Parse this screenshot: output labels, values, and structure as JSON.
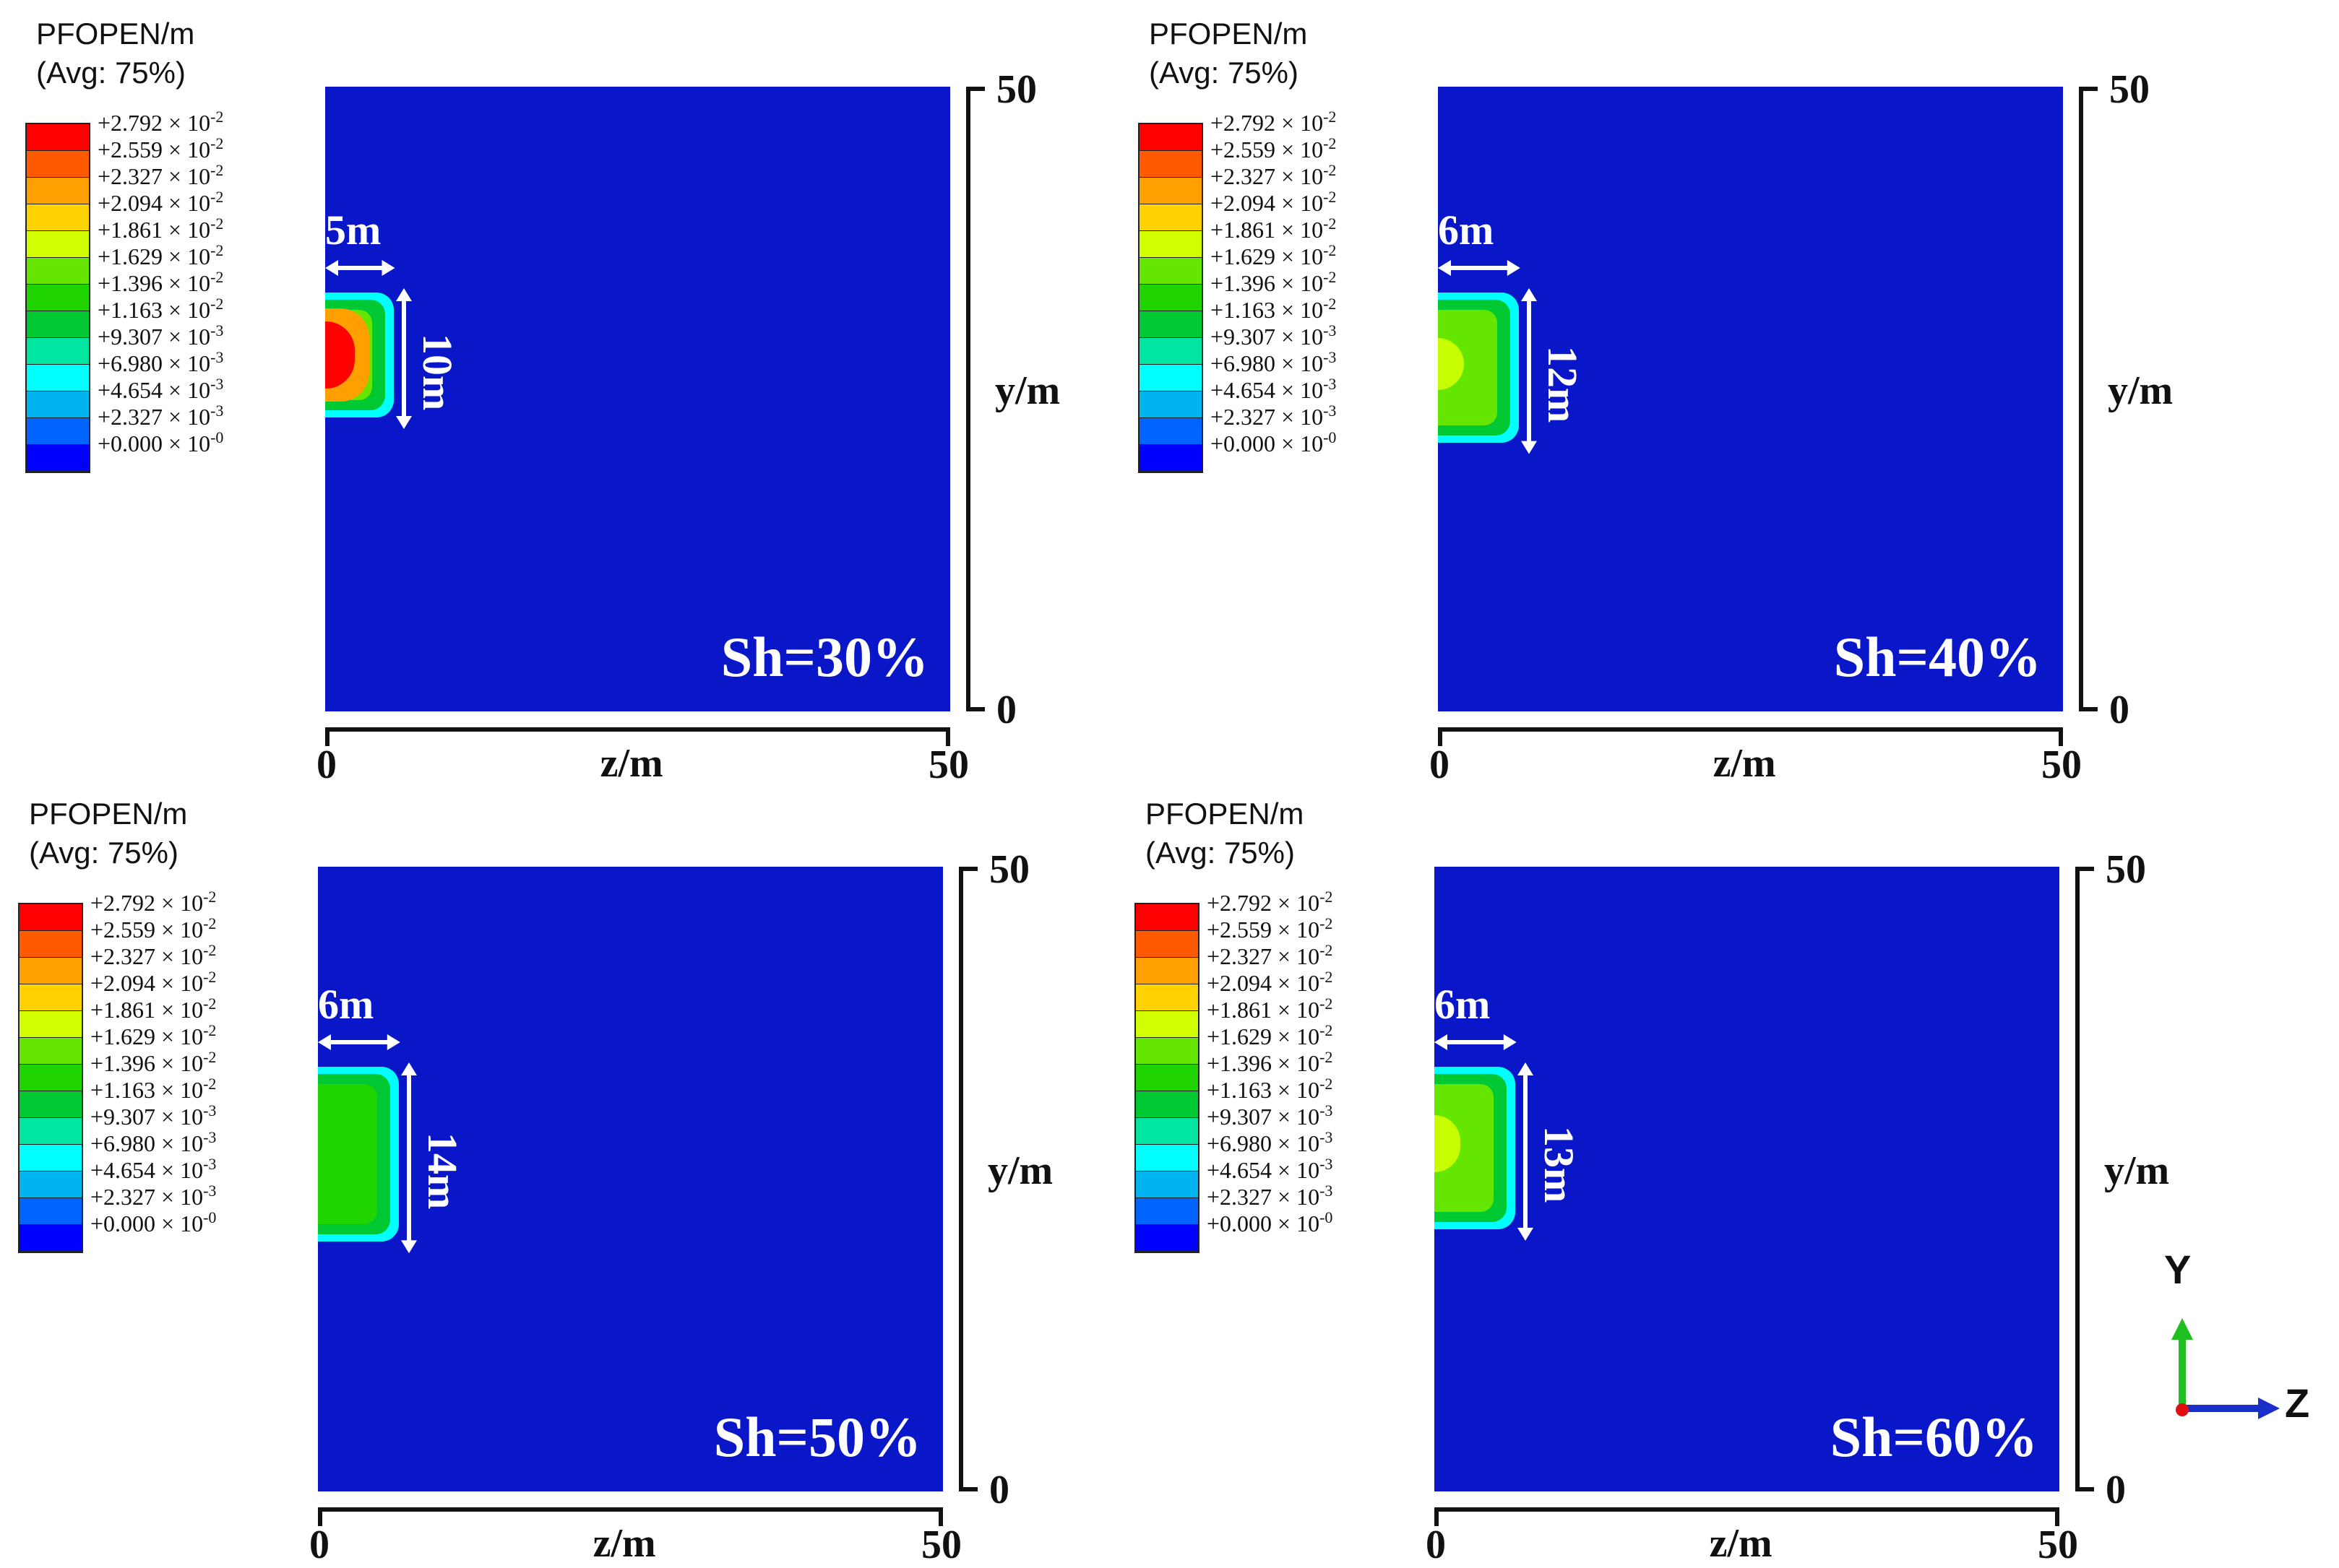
{
  "legend": {
    "title": "PFOPEN/m",
    "subtitle": "(Avg: 75%)",
    "colors": [
      "#ff0000",
      "#ff5a00",
      "#ffa000",
      "#ffd200",
      "#d2ff00",
      "#64e600",
      "#20d400",
      "#00c832",
      "#00e6a0",
      "#00ffff",
      "#00b4f0",
      "#0064ff",
      "#0000ff"
    ],
    "levels": [
      {
        "mant": "+2.792",
        "exp": "-2"
      },
      {
        "mant": "+2.559",
        "exp": "-2"
      },
      {
        "mant": "+2.327",
        "exp": "-2"
      },
      {
        "mant": "+2.094",
        "exp": "-2"
      },
      {
        "mant": "+1.861",
        "exp": "-2"
      },
      {
        "mant": "+1.629",
        "exp": "-2"
      },
      {
        "mant": "+1.396",
        "exp": "-2"
      },
      {
        "mant": "+1.163",
        "exp": "-2"
      },
      {
        "mant": "+9.307",
        "exp": "-3"
      },
      {
        "mant": "+6.980",
        "exp": "-3"
      },
      {
        "mant": "+4.654",
        "exp": "-3"
      },
      {
        "mant": "+2.327",
        "exp": "-3"
      },
      {
        "mant": "+0.000",
        "exp": "-0"
      }
    ]
  },
  "axes": {
    "y_label": "y/m",
    "z_label": "z/m",
    "min": "0",
    "max": "50"
  },
  "panels": [
    {
      "sh_label": "Sh=30%",
      "width_label": "5m",
      "height_label": "10m",
      "width_m": 5,
      "height_m": 10,
      "peak_color": "#ff0000"
    },
    {
      "sh_label": "Sh=40%",
      "width_label": "6m",
      "height_label": "12m",
      "width_m": 6,
      "height_m": 12,
      "peak_color": "#d2ff00"
    },
    {
      "sh_label": "Sh=50%",
      "width_label": "6m",
      "height_label": "14m",
      "width_m": 6,
      "height_m": 14,
      "peak_color": "#20d400"
    },
    {
      "sh_label": "Sh=60%",
      "width_label": "6m",
      "height_label": "13m",
      "width_m": 6,
      "height_m": 13,
      "peak_color": "#d2ff00"
    }
  ],
  "triad": {
    "y_label": "Y",
    "z_label": "Z",
    "y_color": "#1fbf1f",
    "z_color": "#1a2ec9",
    "x_color": "#e01010"
  }
}
